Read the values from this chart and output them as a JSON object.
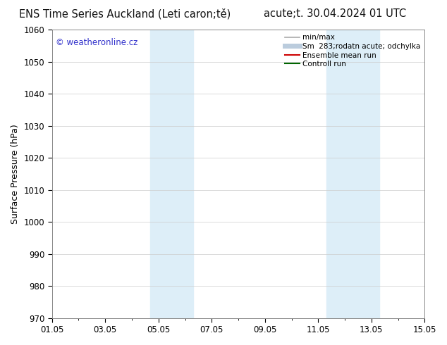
{
  "title_left": "ENS Time Series Auckland (Leti caron;tě)",
  "title_right": "acute;t. 30.04.2024 01 UTC",
  "ylabel": "Surface Pressure (hPa)",
  "ylim": [
    970,
    1060
  ],
  "yticks": [
    970,
    980,
    990,
    1000,
    1010,
    1020,
    1030,
    1040,
    1050,
    1060
  ],
  "xtick_labels": [
    "01.05",
    "03.05",
    "05.05",
    "07.05",
    "09.05",
    "11.05",
    "13.05",
    "15.05"
  ],
  "xtick_positions": [
    0,
    2,
    4,
    6,
    8,
    10,
    12,
    14
  ],
  "xlim_start": 0,
  "xlim_end": 14,
  "shaded_bands": [
    {
      "x_start": 3.7,
      "x_end": 5.3,
      "color": "#ddeef8"
    },
    {
      "x_start": 10.3,
      "x_end": 12.3,
      "color": "#ddeef8"
    }
  ],
  "watermark_text": "© weatheronline.cz",
  "watermark_color": "#3333cc",
  "legend_entries": [
    {
      "label": "min/max",
      "color": "#aaaaaa",
      "lw": 1.2
    },
    {
      "label": "Sm  283;rodatn acute; odchylka",
      "color": "#bbccdd",
      "lw": 5
    },
    {
      "label": "Ensemble mean run",
      "color": "#cc0000",
      "lw": 1.5
    },
    {
      "label": "Controll run",
      "color": "#006600",
      "lw": 1.5
    }
  ],
  "bg_color": "#ffffff",
  "grid_color": "#cccccc",
  "title_fontsize": 10.5,
  "ylabel_fontsize": 9,
  "tick_fontsize": 8.5,
  "legend_fontsize": 7.5,
  "watermark_fontsize": 8.5
}
